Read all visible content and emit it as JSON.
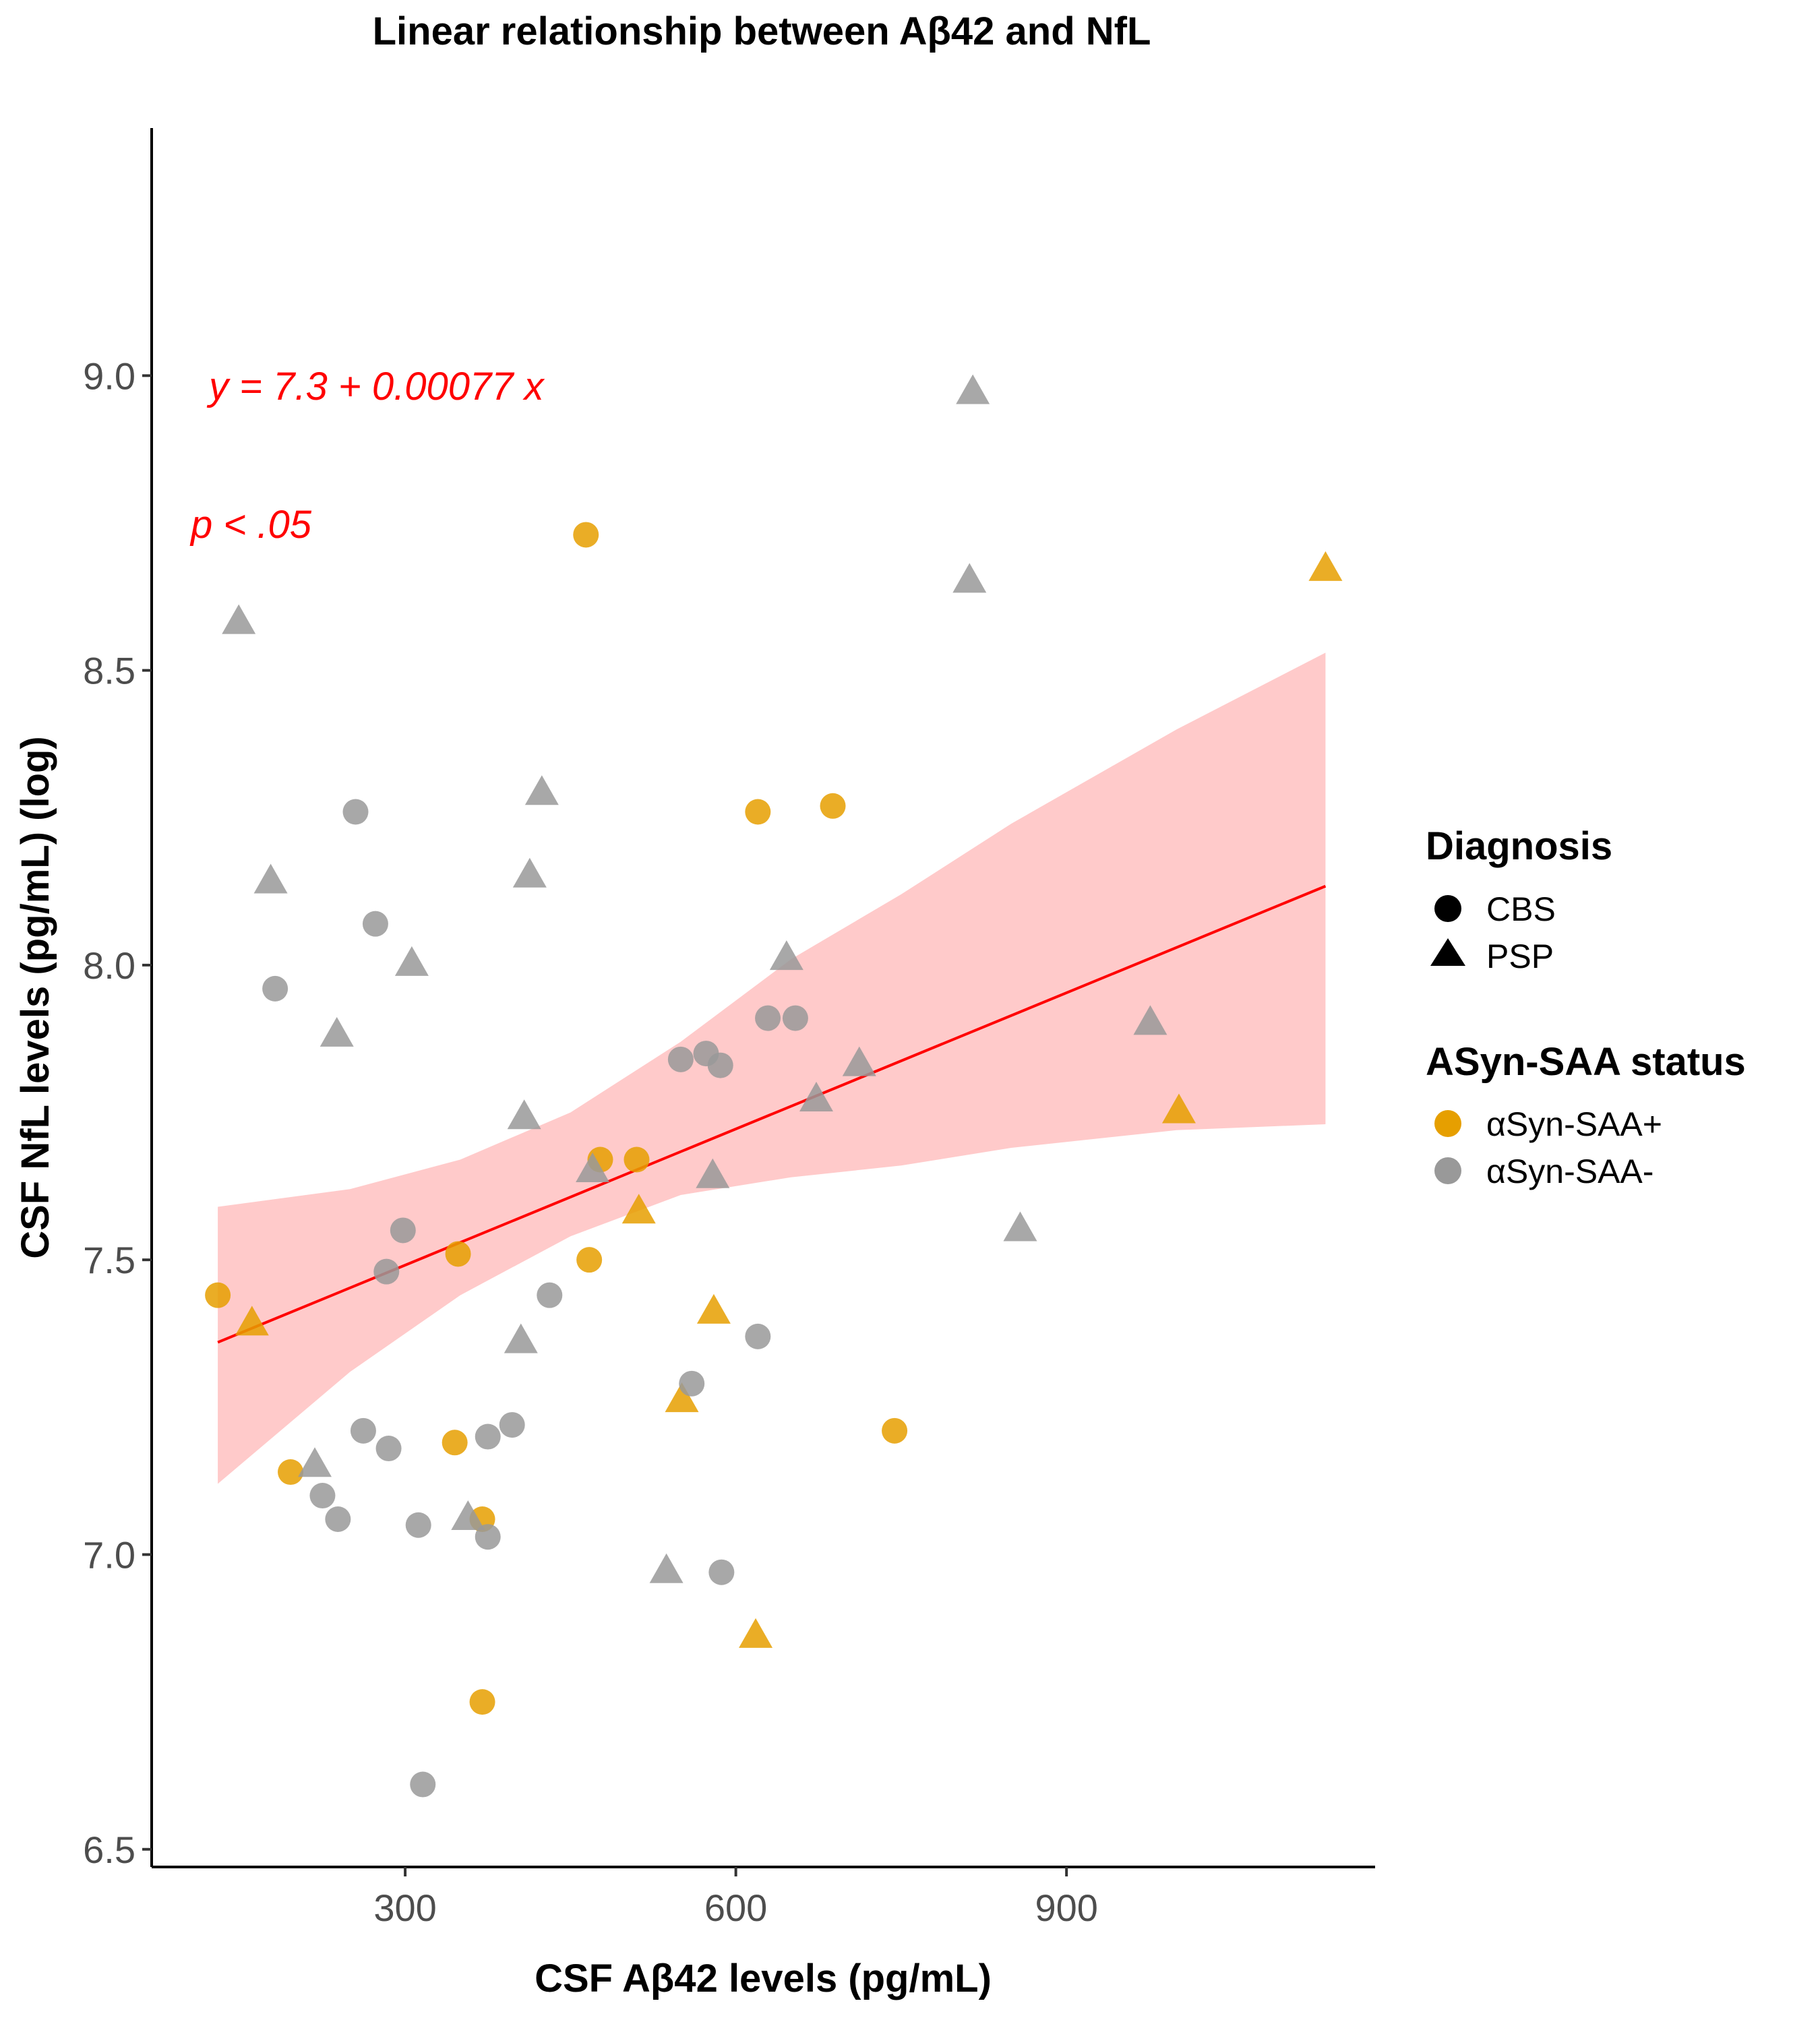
{
  "chart_data": {
    "type": "scatter",
    "title": "Linear relationship between Aβ42 and NfL",
    "xlabel": "CSF Aβ42 levels (pg/mL)",
    "ylabel": "CSF NfL levels (pg/mL) (log)",
    "xlim": [
      70,
      1180
    ],
    "ylim": [
      6.47,
      9.42
    ],
    "x_ticks": [
      300,
      600,
      900
    ],
    "x_tick_labels": [
      "300",
      "600",
      "900"
    ],
    "y_ticks": [
      6.5,
      7.0,
      7.5,
      8.0,
      8.5,
      9.0
    ],
    "y_tick_labels": [
      "6.5",
      "7.0",
      "7.5",
      "8.0",
      "8.5",
      "9.0"
    ],
    "grid": false,
    "legend_position": "right",
    "legend": {
      "diagnosis": {
        "title": "Diagnosis",
        "entries": [
          {
            "label": "CBS",
            "shape": "circle"
          },
          {
            "label": "PSP",
            "shape": "triangle"
          }
        ]
      },
      "status": {
        "title": "ASyn-SAA status",
        "entries": [
          {
            "label": "αSyn-SAA+",
            "color": "#E69F00"
          },
          {
            "label": "αSyn-SAA-",
            "color": "#999999"
          }
        ]
      }
    },
    "colors": {
      "pos": "#E69F00",
      "neg": "#999999",
      "fit": "#ff0000",
      "band": "#ffb3b3"
    },
    "annotations": {
      "equation": "y = 7.3 + 0.00077 x",
      "p_value": "p < .05"
    },
    "fit": {
      "intercept": 7.26,
      "slope": 0.00077,
      "x_range": [
        130,
        1135
      ],
      "ci_band": [
        {
          "x": 130,
          "lower": 7.12,
          "upper": 7.59
        },
        {
          "x": 250,
          "lower": 7.31,
          "upper": 7.62
        },
        {
          "x": 350,
          "lower": 7.44,
          "upper": 7.67
        },
        {
          "x": 450,
          "lower": 7.54,
          "upper": 7.75
        },
        {
          "x": 550,
          "lower": 7.61,
          "upper": 7.87
        },
        {
          "x": 650,
          "lower": 7.64,
          "upper": 8.01
        },
        {
          "x": 750,
          "lower": 7.66,
          "upper": 8.12
        },
        {
          "x": 850,
          "lower": 7.69,
          "upper": 8.24
        },
        {
          "x": 1000,
          "lower": 7.72,
          "upper": 8.4
        },
        {
          "x": 1135,
          "lower": 7.73,
          "upper": 8.53
        }
      ]
    },
    "series": [
      {
        "diagnosis": "CBS",
        "status": "αSyn-SAA+",
        "points": [
          [
            130,
            7.44
          ],
          [
            196,
            7.14
          ],
          [
            345,
            7.19
          ],
          [
            348,
            7.51
          ],
          [
            370,
            7.06
          ],
          [
            370,
            6.75
          ],
          [
            467,
            7.5
          ],
          [
            477,
            7.67
          ],
          [
            510,
            7.67
          ],
          [
            620,
            8.26
          ],
          [
            688,
            8.27
          ],
          [
            744,
            7.21
          ],
          [
            464,
            8.73
          ]
        ]
      },
      {
        "diagnosis": "PSP",
        "status": "αSyn-SAA+",
        "points": [
          [
            161,
            7.39
          ],
          [
            512,
            7.58
          ],
          [
            551,
            7.26
          ],
          [
            580,
            7.41
          ],
          [
            618,
            6.86
          ],
          [
            1002,
            7.75
          ],
          [
            1135,
            8.67
          ]
        ]
      },
      {
        "diagnosis": "CBS",
        "status": "αSyn-SAA-",
        "points": [
          [
            182,
            7.96
          ],
          [
            225,
            7.1
          ],
          [
            239,
            7.06
          ],
          [
            255,
            8.26
          ],
          [
            262,
            7.21
          ],
          [
            273,
            8.07
          ],
          [
            283,
            7.48
          ],
          [
            285,
            7.18
          ],
          [
            298,
            7.55
          ],
          [
            312,
            7.05
          ],
          [
            316,
            6.61
          ],
          [
            375,
            7.2
          ],
          [
            375,
            7.03
          ],
          [
            397,
            7.22
          ],
          [
            431,
            7.44
          ],
          [
            550,
            7.84
          ],
          [
            560,
            7.29
          ],
          [
            573,
            7.85
          ],
          [
            586,
            7.83
          ],
          [
            587,
            6.97
          ],
          [
            620,
            7.37
          ],
          [
            629,
            7.91
          ],
          [
            654,
            7.91
          ]
        ]
      },
      {
        "diagnosis": "PSP",
        "status": "αSyn-SAA-",
        "points": [
          [
            149,
            8.58
          ],
          [
            178,
            8.14
          ],
          [
            218,
            7.15
          ],
          [
            238,
            7.88
          ],
          [
            306,
            8.0
          ],
          [
            357,
            7.06
          ],
          [
            405,
            7.36
          ],
          [
            408,
            7.74
          ],
          [
            413,
            8.15
          ],
          [
            424,
            8.29
          ],
          [
            470,
            7.65
          ],
          [
            537,
            6.97
          ],
          [
            579,
            7.64
          ],
          [
            646,
            8.01
          ],
          [
            673,
            7.77
          ],
          [
            712,
            7.83
          ],
          [
            812,
            8.65
          ],
          [
            815,
            8.97
          ],
          [
            858,
            7.55
          ],
          [
            976,
            7.9
          ]
        ]
      }
    ]
  }
}
